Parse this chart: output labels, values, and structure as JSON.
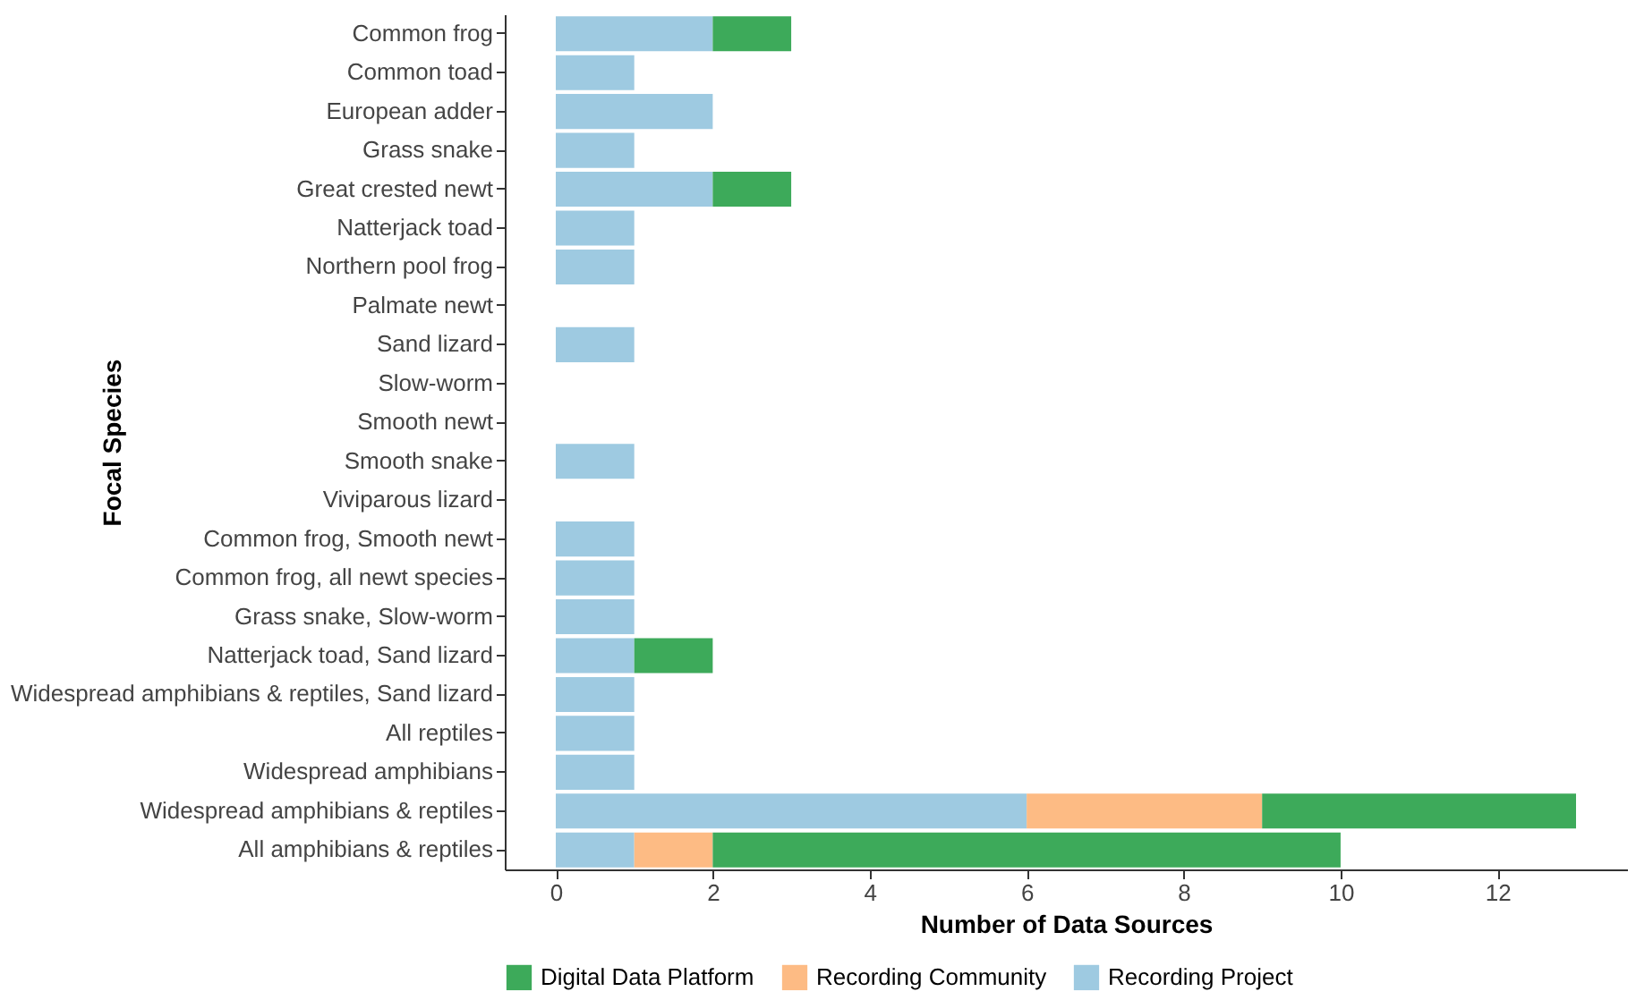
{
  "chart_data": {
    "type": "bar",
    "orientation": "horizontal",
    "stacked": true,
    "xlabel": "Number of Data Sources",
    "ylabel": "Focal Species",
    "categories": [
      "Common frog",
      "Common toad",
      "European adder",
      "Grass snake",
      "Great crested newt",
      "Natterjack toad",
      "Northern pool frog",
      "Palmate newt",
      "Sand lizard",
      "Slow-worm",
      "Smooth newt",
      "Smooth snake",
      "Viviparous lizard",
      "Common frog, Smooth newt",
      "Common frog, all newt species",
      "Grass snake, Slow-worm",
      "Natterjack toad, Sand lizard",
      "Widespread amphibians & reptiles, Sand lizard",
      "All reptiles",
      "Widespread amphibians",
      "Widespread amphibians & reptiles",
      "All amphibians & reptiles"
    ],
    "series": [
      {
        "name": "Recording Project",
        "color": "#9ecae1",
        "values": [
          2,
          1,
          2,
          1,
          2,
          1,
          1,
          0,
          1,
          0,
          0,
          1,
          0,
          1,
          1,
          1,
          1,
          1,
          1,
          1,
          6,
          1
        ]
      },
      {
        "name": "Recording Community",
        "color": "#fdbb84",
        "values": [
          0,
          0,
          0,
          0,
          0,
          0,
          0,
          0,
          0,
          0,
          0,
          0,
          0,
          0,
          0,
          0,
          0,
          0,
          0,
          0,
          3,
          1
        ]
      },
      {
        "name": "Digital Data Platform",
        "color": "#3daa5a",
        "values": [
          1,
          0,
          0,
          0,
          1,
          0,
          0,
          0,
          0,
          0,
          0,
          0,
          0,
          0,
          0,
          0,
          1,
          0,
          0,
          0,
          4,
          8
        ]
      }
    ],
    "xlim": [
      -0.65,
      13.65
    ],
    "xticks": [
      0,
      2,
      4,
      6,
      8,
      10,
      12
    ],
    "grid": false,
    "legend": "bottom"
  }
}
